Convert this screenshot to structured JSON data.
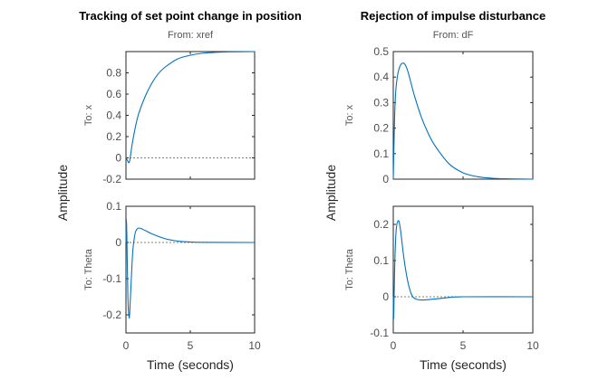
{
  "chart_data": [
    {
      "type": "line",
      "title": "Tracking of set point change in position",
      "subtitle": "From: xref",
      "ylabel": "Amplitude",
      "xlabel": "Time (seconds)",
      "line_color": "#0072BD",
      "grid": false,
      "panels": [
        {
          "row_label": "To: x",
          "ylim": [
            -0.2,
            1.0
          ],
          "yticks": [
            -0.2,
            0,
            0.2,
            0.4,
            0.6,
            0.8
          ],
          "ytick_labels": [
            "-0.2",
            "0",
            "0.2",
            "0.4",
            "0.6",
            "0.8"
          ],
          "xlim": [
            0,
            10
          ],
          "series": [
            {
              "x": [
                0,
                0.1,
                0.2,
                0.3,
                0.5,
                0.75,
                1,
                1.5,
                2,
                2.5,
                3,
                4,
                5,
                6,
                7,
                8,
                10
              ],
              "y": [
                0,
                -0.02,
                -0.045,
                -0.02,
                0.14,
                0.3,
                0.42,
                0.58,
                0.7,
                0.79,
                0.85,
                0.93,
                0.965,
                0.985,
                0.993,
                0.997,
                1.0
              ]
            }
          ]
        },
        {
          "row_label": "To: Theta",
          "ylim": [
            -0.25,
            0.1
          ],
          "yticks": [
            -0.2,
            -0.1,
            0,
            0.1
          ],
          "ytick_labels": [
            "-0.2",
            "-0.1",
            "0",
            "0.1"
          ],
          "xlim": [
            0,
            10
          ],
          "xticks": [
            0,
            5,
            10
          ],
          "xtick_labels": [
            "0",
            "5",
            "10"
          ],
          "series": [
            {
              "x": [
                0,
                0.03,
                0.08,
                0.15,
                0.25,
                0.35,
                0.5,
                0.6,
                0.75,
                1,
                1.5,
                2,
                3,
                4,
                5,
                6,
                10
              ],
              "y": [
                0,
                0.065,
                0.0,
                -0.15,
                -0.21,
                -0.15,
                -0.04,
                0.0,
                0.03,
                0.04,
                0.033,
                0.024,
                0.011,
                0.004,
                0.0015,
                0.0005,
                0
              ]
            }
          ]
        }
      ]
    },
    {
      "type": "line",
      "title": "Rejection of impulse disturbance",
      "subtitle": "From: dF",
      "ylabel": "Amplitude",
      "xlabel": "Time (seconds)",
      "line_color": "#0072BD",
      "grid": false,
      "panels": [
        {
          "row_label": "To: x",
          "ylim": [
            0,
            0.5
          ],
          "yticks": [
            0,
            0.1,
            0.2,
            0.3,
            0.4,
            0.5
          ],
          "ytick_labels": [
            "0",
            "0.1",
            "0.2",
            "0.3",
            "0.4",
            "0.5"
          ],
          "xlim": [
            0,
            10
          ],
          "series": [
            {
              "x": [
                0,
                0.1,
                0.2,
                0.4,
                0.7,
                1,
                1.5,
                2,
                2.5,
                3,
                4,
                5,
                6,
                7,
                8,
                10
              ],
              "y": [
                0,
                0.25,
                0.36,
                0.43,
                0.455,
                0.43,
                0.33,
                0.245,
                0.18,
                0.13,
                0.06,
                0.025,
                0.01,
                0.004,
                0.0015,
                0
              ]
            }
          ]
        },
        {
          "row_label": "To: Theta",
          "ylim": [
            -0.1,
            0.25
          ],
          "yticks": [
            -0.1,
            0,
            0.1,
            0.2
          ],
          "ytick_labels": [
            "-0.1",
            "0",
            "0.1",
            "0.2"
          ],
          "xlim": [
            0,
            10
          ],
          "xticks": [
            0,
            5,
            10
          ],
          "xtick_labels": [
            "0",
            "5",
            "10"
          ],
          "series": [
            {
              "x": [
                0,
                0.03,
                0.1,
                0.2,
                0.35,
                0.5,
                0.75,
                1,
                1.25,
                1.5,
                2,
                3,
                4,
                5,
                10
              ],
              "y": [
                0,
                -0.06,
                0.08,
                0.18,
                0.21,
                0.19,
                0.11,
                0.05,
                0.012,
                -0.004,
                -0.009,
                -0.006,
                -0.002,
                0,
                0
              ]
            }
          ]
        }
      ]
    }
  ]
}
